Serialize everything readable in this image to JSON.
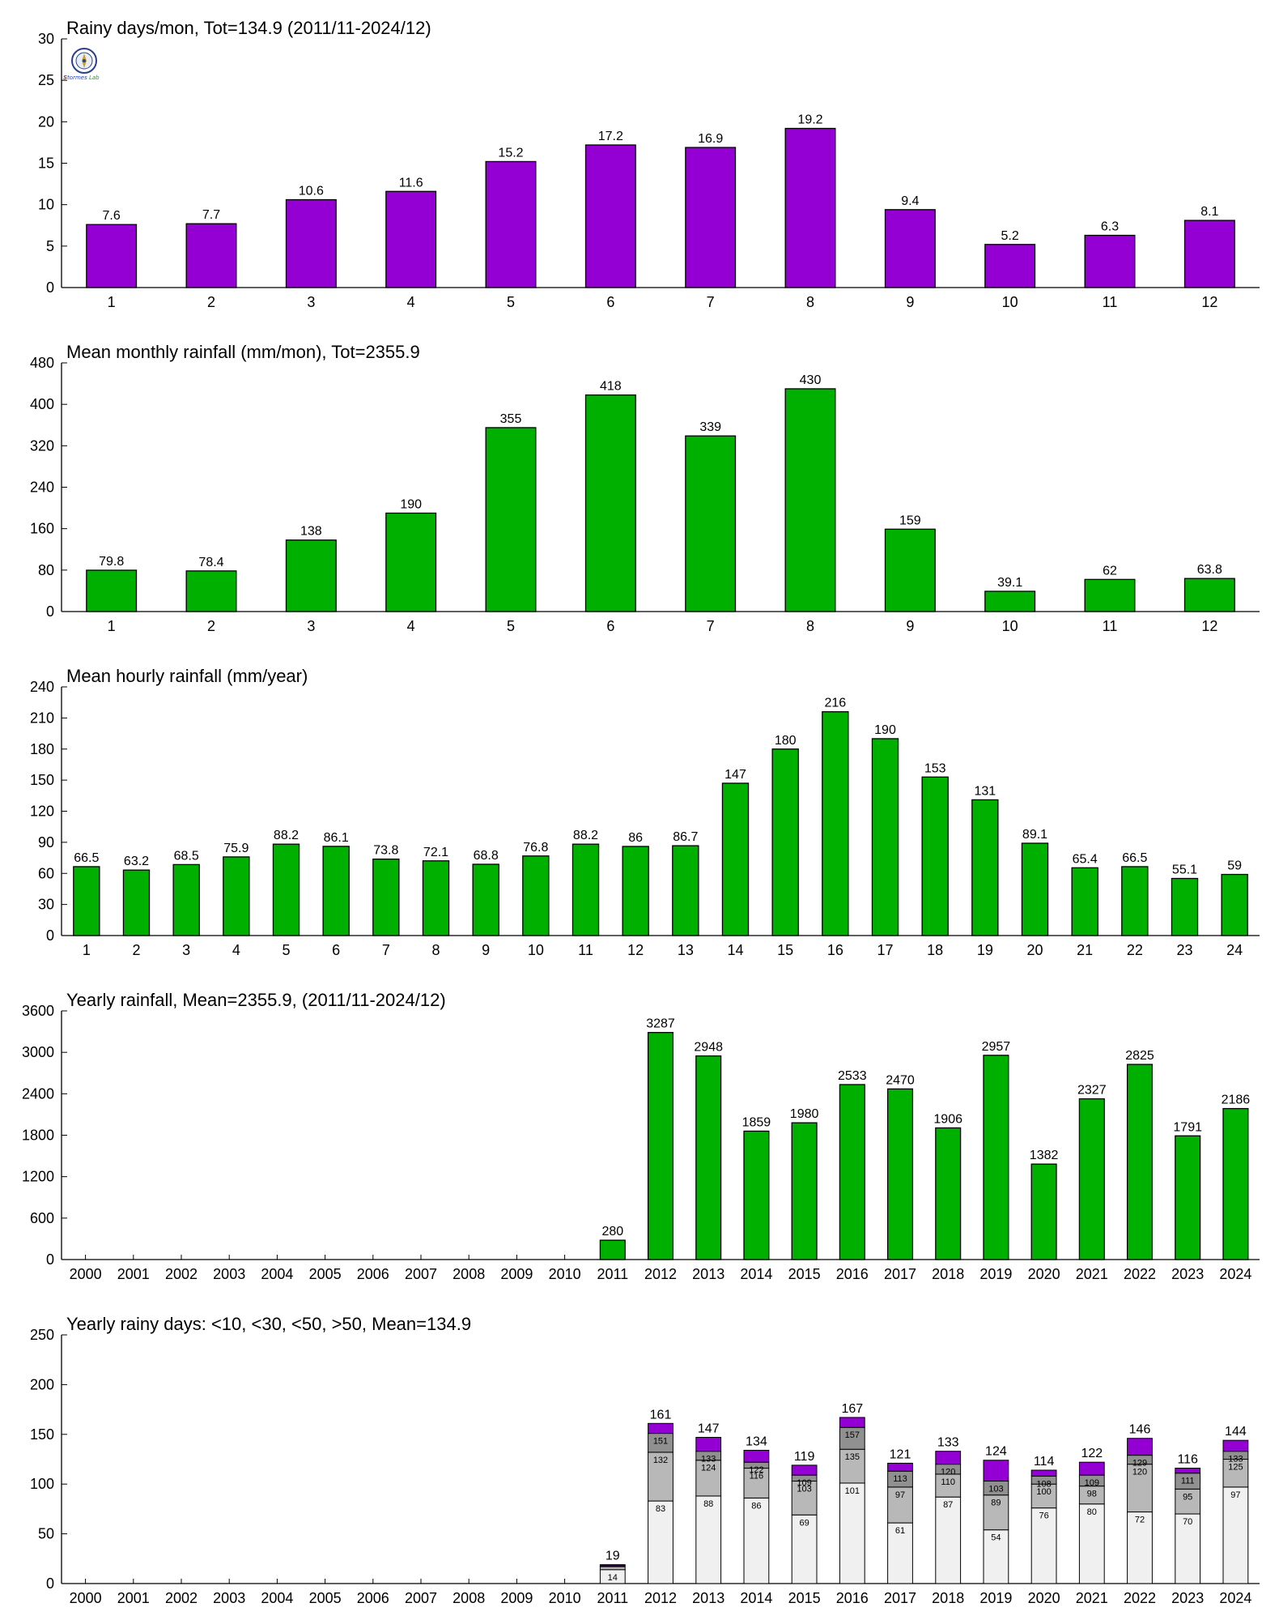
{
  "colors": {
    "purple": "#9400D3",
    "green": "#00B000",
    "light": "#F0F0F0",
    "mid": "#B8B8B8",
    "dark": "#909090"
  },
  "logo": {
    "icon": "compass-seal-icon",
    "text_a": "S",
    "text_b": "tormes",
    "text_c": "Lab"
  },
  "chart_data": [
    {
      "type": "bar",
      "title": "Rainy days/mon, Tot=134.9 (2011/11-2024/12)",
      "categories": [
        "1",
        "2",
        "3",
        "4",
        "5",
        "6",
        "7",
        "8",
        "9",
        "10",
        "11",
        "12"
      ],
      "values": [
        7.6,
        7.7,
        10.6,
        11.6,
        15.2,
        17.2,
        16.9,
        19.2,
        9.4,
        5.2,
        6.3,
        8.1
      ],
      "value_labels": [
        "7.6",
        "7.7",
        "10.6",
        "11.6",
        "15.2",
        "17.2",
        "16.9",
        "19.2",
        "9.4",
        "5.2",
        "6.3",
        "8.1"
      ],
      "ylim": [
        0,
        30
      ],
      "yticks": [
        "0",
        "5",
        "10",
        "15",
        "20",
        "25",
        "30"
      ],
      "color": "#9400D3"
    },
    {
      "type": "bar",
      "title": "Mean monthly rainfall (mm/mon), Tot=2355.9",
      "categories": [
        "1",
        "2",
        "3",
        "4",
        "5",
        "6",
        "7",
        "8",
        "9",
        "10",
        "11",
        "12"
      ],
      "values": [
        79.8,
        78.4,
        138,
        190,
        355,
        418,
        339,
        430,
        159,
        39.1,
        62,
        63.8
      ],
      "value_labels": [
        "79.8",
        "78.4",
        "138",
        "190",
        "355",
        "418",
        "339",
        "430",
        "159",
        "39.1",
        "62",
        "63.8"
      ],
      "ylim": [
        0,
        480
      ],
      "yticks": [
        "0",
        "80",
        "160",
        "240",
        "320",
        "400",
        "480"
      ],
      "color": "#00B000"
    },
    {
      "type": "bar",
      "title": "Mean hourly rainfall (mm/year)",
      "categories": [
        "1",
        "2",
        "3",
        "4",
        "5",
        "6",
        "7",
        "8",
        "9",
        "10",
        "11",
        "12",
        "13",
        "14",
        "15",
        "16",
        "17",
        "18",
        "19",
        "20",
        "21",
        "22",
        "23",
        "24"
      ],
      "values": [
        66.5,
        63.2,
        68.5,
        75.9,
        88.2,
        86.1,
        73.8,
        72.1,
        68.8,
        76.8,
        88.2,
        86,
        86.7,
        147,
        180,
        216,
        190,
        153,
        131,
        89.1,
        65.4,
        66.5,
        55.1,
        59
      ],
      "value_labels": [
        "66.5",
        "63.2",
        "68.5",
        "75.9",
        "88.2",
        "86.1",
        "73.8",
        "72.1",
        "68.8",
        "76.8",
        "88.2",
        "86",
        "86.7",
        "147",
        "180",
        "216",
        "190",
        "153",
        "131",
        "89.1",
        "65.4",
        "66.5",
        "55.1",
        "59"
      ],
      "ylim": [
        0,
        240
      ],
      "yticks": [
        "0",
        "30",
        "60",
        "90",
        "120",
        "150",
        "180",
        "210",
        "240"
      ],
      "color": "#00B000"
    },
    {
      "type": "bar",
      "title": "Yearly rainfall, Mean=2355.9, (2011/11-2024/12)",
      "categories": [
        "2000",
        "2001",
        "2002",
        "2003",
        "2004",
        "2005",
        "2006",
        "2007",
        "2008",
        "2009",
        "2010",
        "2011",
        "2012",
        "2013",
        "2014",
        "2015",
        "2016",
        "2017",
        "2018",
        "2019",
        "2020",
        "2021",
        "2022",
        "2023",
        "2024"
      ],
      "values": [
        null,
        null,
        null,
        null,
        null,
        null,
        null,
        null,
        null,
        null,
        null,
        280,
        3287,
        2948,
        1859,
        1980,
        2533,
        2470,
        1906,
        2957,
        1382,
        2327,
        2825,
        1791,
        2186
      ],
      "value_labels": [
        "",
        "",
        "",
        "",
        "",
        "",
        "",
        "",
        "",
        "",
        "",
        "280",
        "3287",
        "2948",
        "1859",
        "1980",
        "2533",
        "2470",
        "1906",
        "2957",
        "1382",
        "2327",
        "2825",
        "1791",
        "2186"
      ],
      "ylim": [
        0,
        3600
      ],
      "yticks": [
        "0",
        "600",
        "1200",
        "1800",
        "2400",
        "3000",
        "3600"
      ],
      "color": "#00B000"
    },
    {
      "type": "bar",
      "stacked": true,
      "title": "Yearly rainy days: <10, <30, <50, >50, Mean=134.9",
      "categories": [
        "2000",
        "2001",
        "2002",
        "2003",
        "2004",
        "2005",
        "2006",
        "2007",
        "2008",
        "2009",
        "2010",
        "2011",
        "2012",
        "2013",
        "2014",
        "2015",
        "2016",
        "2017",
        "2018",
        "2019",
        "2020",
        "2021",
        "2022",
        "2023",
        "2024"
      ],
      "cumulative": [
        null,
        null,
        null,
        null,
        null,
        null,
        null,
        null,
        null,
        null,
        null,
        [
          14,
          17,
          18,
          19
        ],
        [
          83,
          132,
          151,
          161
        ],
        [
          88,
          124,
          133,
          147
        ],
        [
          86,
          116,
          122,
          134
        ],
        [
          69,
          103,
          109,
          119
        ],
        [
          101,
          135,
          157,
          167
        ],
        [
          61,
          97,
          113,
          121
        ],
        [
          87,
          110,
          120,
          133
        ],
        [
          54,
          89,
          103,
          124
        ],
        [
          76,
          100,
          108,
          114
        ],
        [
          80,
          98,
          109,
          122
        ],
        [
          72,
          120,
          129,
          146
        ],
        [
          70,
          95,
          111,
          116
        ],
        [
          97,
          125,
          133,
          144
        ]
      ],
      "segment_labels": [
        null,
        null,
        null,
        null,
        null,
        null,
        null,
        null,
        null,
        null,
        null,
        [
          "14",
          "",
          "",
          ""
        ],
        [
          "83",
          "132",
          "151",
          ""
        ],
        [
          "88",
          "124",
          "133",
          ""
        ],
        [
          "86",
          "116",
          "122",
          ""
        ],
        [
          "69",
          "103",
          "109",
          ""
        ],
        [
          "101",
          "135",
          "157",
          ""
        ],
        [
          "61",
          "97",
          "113",
          ""
        ],
        [
          "87",
          "110",
          "120",
          ""
        ],
        [
          "54",
          "89",
          "103",
          ""
        ],
        [
          "76",
          "100",
          "108",
          ""
        ],
        [
          "80",
          "98",
          "109",
          ""
        ],
        [
          "72",
          "120",
          "129",
          ""
        ],
        [
          "70",
          "95",
          "111",
          ""
        ],
        [
          "97",
          "125",
          "133",
          ""
        ]
      ],
      "total_labels": [
        "",
        "",
        "",
        "",
        "",
        "",
        "",
        "",
        "",
        "",
        "",
        "19",
        "161",
        "147",
        "134",
        "119",
        "167",
        "121",
        "133",
        "124",
        "114",
        "122",
        "146",
        "116",
        "144"
      ],
      "ylim": [
        0,
        250
      ],
      "yticks": [
        "0",
        "50",
        "100",
        "150",
        "200",
        "250"
      ],
      "series_colors": [
        "#F0F0F0",
        "#B8B8B8",
        "#909090",
        "#9400D3"
      ]
    }
  ]
}
